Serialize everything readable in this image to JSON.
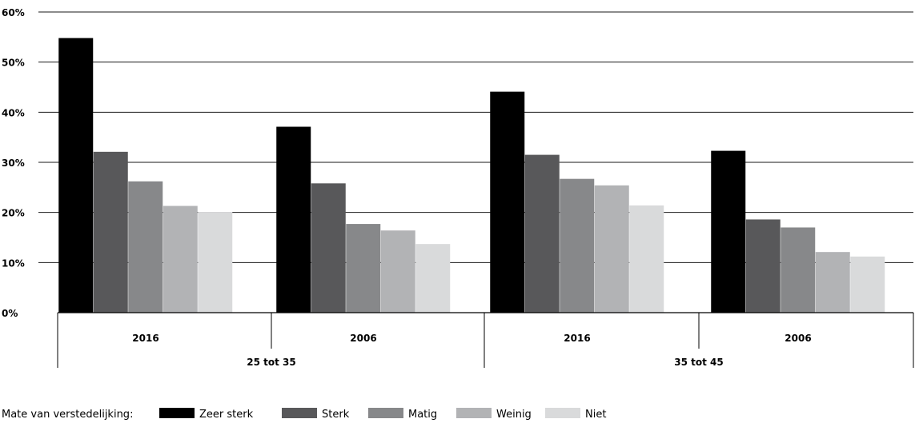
{
  "chart_data": {
    "type": "bar",
    "groups": [
      {
        "label": "25 tot 35",
        "categories": [
          "2016",
          "2006"
        ]
      },
      {
        "label": "35 tot 45",
        "categories": [
          "2016",
          "2006"
        ]
      }
    ],
    "categories": [
      "2016",
      "2006",
      "2016",
      "2006"
    ],
    "series": [
      {
        "name": "Zeer sterk",
        "color": "#000000",
        "values": [
          54.8,
          37.1,
          44.1,
          32.3
        ]
      },
      {
        "name": "Sterk",
        "color": "#58585a",
        "values": [
          32.1,
          25.8,
          31.5,
          18.6
        ]
      },
      {
        "name": "Matig",
        "color": "#87888a",
        "values": [
          26.2,
          17.7,
          26.7,
          17.0
        ]
      },
      {
        "name": "Weinig",
        "color": "#b2b3b5",
        "values": [
          21.3,
          16.4,
          25.4,
          12.1
        ]
      },
      {
        "name": "Niet",
        "color": "#d9dadb",
        "values": [
          20.1,
          13.7,
          21.4,
          11.2
        ]
      }
    ],
    "yticks": [
      "0%",
      "10%",
      "20%",
      "30%",
      "40%",
      "50%",
      "60%"
    ],
    "ylim": [
      0,
      60
    ],
    "legend_title": "Mate van verstedelijking:",
    "legend_position": "bottom-left",
    "grid": true
  }
}
